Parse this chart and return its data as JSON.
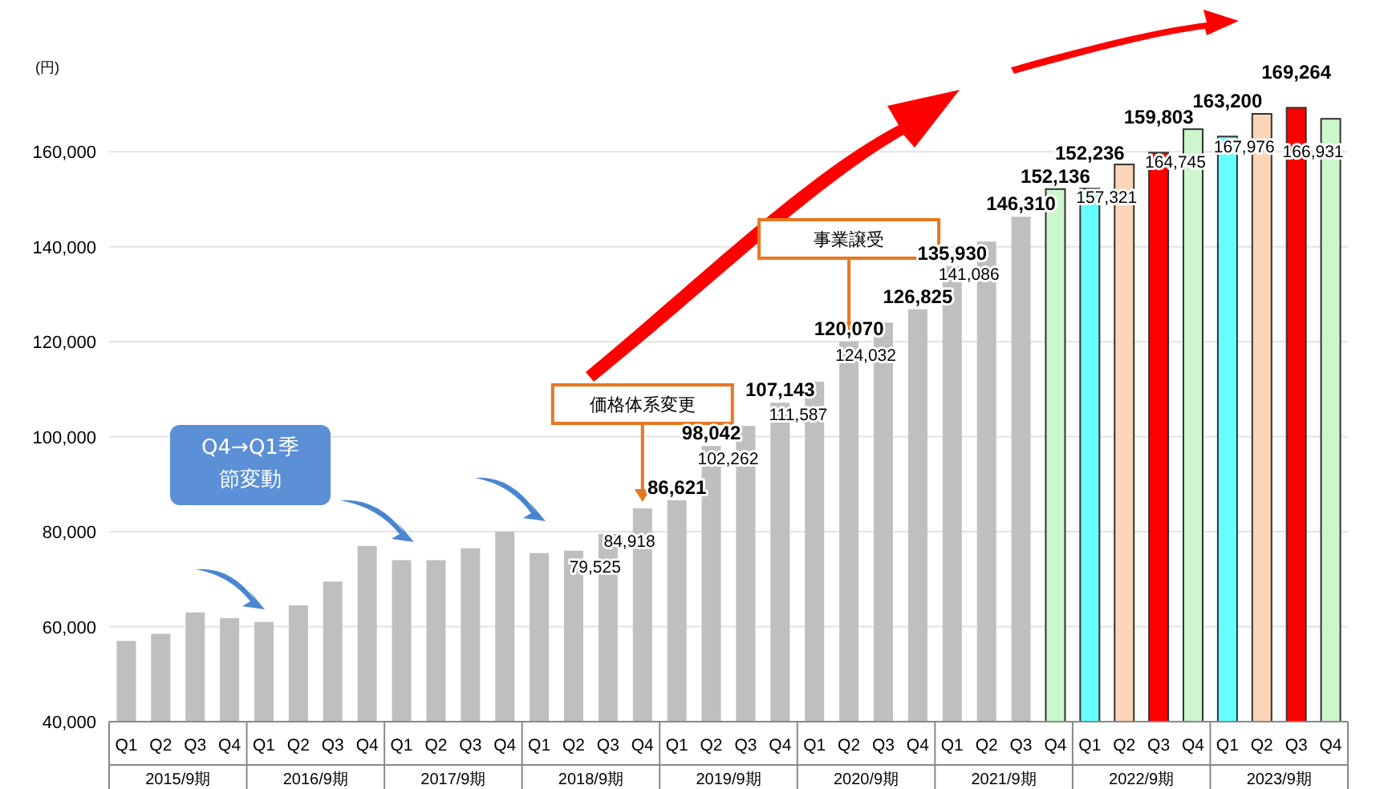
{
  "chart_data": {
    "type": "bar",
    "ylabel": "(円)",
    "categories": [
      "Q1",
      "Q2",
      "Q3",
      "Q4",
      "Q1",
      "Q2",
      "Q3",
      "Q4",
      "Q1",
      "Q2",
      "Q3",
      "Q4",
      "Q1",
      "Q2",
      "Q3",
      "Q4",
      "Q1",
      "Q2",
      "Q3",
      "Q4",
      "Q1",
      "Q2",
      "Q3",
      "Q4",
      "Q1",
      "Q2",
      "Q3",
      "Q4",
      "Q1",
      "Q2",
      "Q3",
      "Q4",
      "Q1",
      "Q2",
      "Q3",
      "Q4"
    ],
    "values": [
      57000,
      58500,
      63000,
      61800,
      61000,
      64500,
      69500,
      77000,
      74000,
      74000,
      76500,
      80000,
      75500,
      76000,
      79525,
      84918,
      86621,
      98042,
      102262,
      107143,
      111587,
      120070,
      124032,
      126825,
      135930,
      141086,
      146310,
      152136,
      152236,
      157321,
      159803,
      164745,
      163200,
      167976,
      169264,
      166931
    ],
    "value_labels": [
      null,
      null,
      null,
      null,
      null,
      null,
      null,
      null,
      null,
      null,
      null,
      null,
      null,
      null,
      "79,525",
      "84,918",
      "86,621",
      "98,042",
      "102,262",
      "107,143",
      "111,587",
      "120,070",
      "124,032",
      "126,825",
      "135,930",
      "141,086",
      "146,310",
      "152,136",
      "152,236",
      "157,321",
      "159,803",
      "164,745",
      "163,200",
      "167,976",
      "169,264",
      "166,931"
    ],
    "colors": [
      "#bfbfbf",
      "#bfbfbf",
      "#bfbfbf",
      "#bfbfbf",
      "#bfbfbf",
      "#bfbfbf",
      "#bfbfbf",
      "#bfbfbf",
      "#bfbfbf",
      "#bfbfbf",
      "#bfbfbf",
      "#bfbfbf",
      "#bfbfbf",
      "#bfbfbf",
      "#bfbfbf",
      "#bfbfbf",
      "#bfbfbf",
      "#bfbfbf",
      "#bfbfbf",
      "#bfbfbf",
      "#bfbfbf",
      "#bfbfbf",
      "#bfbfbf",
      "#bfbfbf",
      "#bfbfbf",
      "#bfbfbf",
      "#bfbfbf",
      "#ccf7cc",
      "#66ffff",
      "#fbd5b5",
      "#ff0000",
      "#ccf7cc",
      "#66ffff",
      "#fbd5b5",
      "#ff0000",
      "#ccf7cc"
    ],
    "ylim": [
      40000,
      170000
    ],
    "yticks": [
      {
        "value": 40000,
        "label": "40,000"
      },
      {
        "value": 60000,
        "label": "60,000"
      },
      {
        "value": 80000,
        "label": "80,000"
      },
      {
        "value": 100000,
        "label": "100,000"
      },
      {
        "value": 120000,
        "label": "120,000"
      },
      {
        "value": 140000,
        "label": "140,000"
      },
      {
        "value": 160000,
        "label": "160,000"
      }
    ],
    "grid": "y",
    "annotations": [
      "2015/9期",
      "2016/9期",
      "2017/9期",
      "2018/9期",
      "2019/9期",
      "2020/9期",
      "2021/9期",
      "2022/9期",
      "2023/9期",
      "Q4→Q1季節変動",
      "価格体系変更",
      "事業譲受"
    ]
  }
}
